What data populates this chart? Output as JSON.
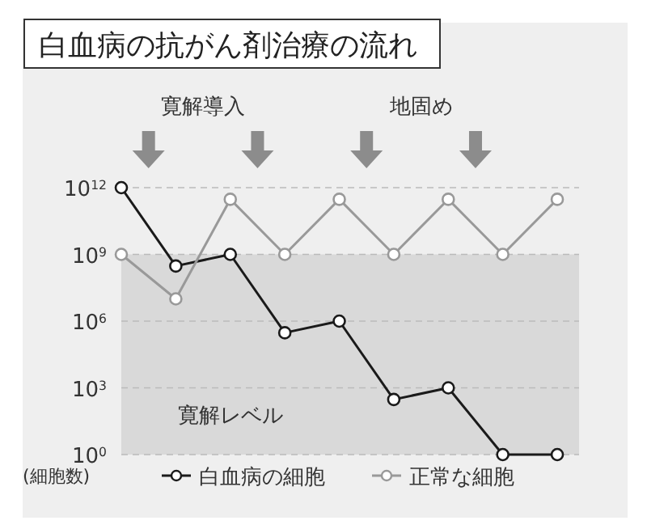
{
  "chart_data": {
    "type": "line",
    "title": "白血病の抗がん剤治療の流れ",
    "ylabel": "(細胞数)",
    "categories": [
      null,
      null,
      null,
      null,
      null,
      null,
      null,
      null,
      null
    ],
    "series": [
      {
        "name": "白血病の細胞",
        "color": "#1a1a1a",
        "values": [
          1000000000000.0,
          300000000.0,
          1000000000.0,
          300000.0,
          1000000.0,
          300,
          1000,
          1,
          1
        ]
      },
      {
        "name": "正常な細胞",
        "color": "#999999",
        "values": [
          1000000000.0,
          10000000.0,
          300000000000.0,
          1000000000.0,
          300000000000.0,
          1000000000.0,
          300000000000.0,
          1000000000.0,
          300000000000.0
        ]
      }
    ],
    "log": true,
    "ylim": [
      1,
      1000000000000.0
    ],
    "yticks": [
      {
        "value": 1,
        "label": "10$^{0}$"
      },
      {
        "value": 1000,
        "label": "10$^{3}$"
      },
      {
        "value": 1000000.0,
        "label": "10$^{6}$"
      },
      {
        "value": 1000000000.0,
        "label": "10$^{9}$"
      },
      {
        "value": 1000000000000.0,
        "label": "10$^{12}$"
      }
    ],
    "grid": "y",
    "marker": "circle",
    "line_style": "solid",
    "legend": "bottom",
    "bands": [
      {
        "axis": "y",
        "from": 1,
        "to": 1000000000.0,
        "label": "寛解レベル",
        "color": "#d9d9d9"
      }
    ],
    "annotations": [
      "寛解導入",
      "地固め"
    ]
  }
}
